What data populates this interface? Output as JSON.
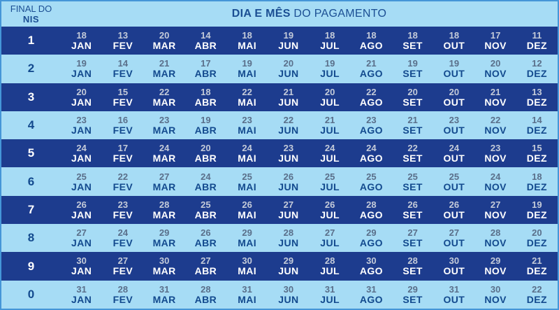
{
  "header": {
    "corner_line1": "FINAL DO",
    "corner_line2": "NIS",
    "title_bold": "DIA E MÊS",
    "title_rest": " DO PAGAMENTO"
  },
  "chart_data": {
    "type": "table",
    "title": "DIA E MÊS DO PAGAMENTO",
    "row_header": "FINAL DO NIS",
    "columns": [
      "JAN",
      "FEV",
      "MAR",
      "ABR",
      "MAI",
      "JUN",
      "JUL",
      "AGO",
      "SET",
      "OUT",
      "NOV",
      "DEZ"
    ],
    "rows": [
      {
        "nis": "1",
        "days": [
          18,
          13,
          20,
          14,
          18,
          19,
          18,
          18,
          18,
          18,
          17,
          11
        ]
      },
      {
        "nis": "2",
        "days": [
          19,
          14,
          21,
          17,
          19,
          20,
          19,
          21,
          19,
          19,
          20,
          12
        ]
      },
      {
        "nis": "3",
        "days": [
          20,
          15,
          22,
          18,
          22,
          21,
          20,
          22,
          20,
          20,
          21,
          13
        ]
      },
      {
        "nis": "4",
        "days": [
          23,
          16,
          23,
          19,
          23,
          22,
          21,
          23,
          21,
          23,
          22,
          14
        ]
      },
      {
        "nis": "5",
        "days": [
          24,
          17,
          24,
          20,
          24,
          23,
          24,
          24,
          22,
          24,
          23,
          15
        ]
      },
      {
        "nis": "6",
        "days": [
          25,
          22,
          27,
          24,
          25,
          26,
          25,
          25,
          25,
          25,
          24,
          18
        ]
      },
      {
        "nis": "7",
        "days": [
          26,
          23,
          28,
          25,
          26,
          27,
          26,
          28,
          26,
          26,
          27,
          19
        ]
      },
      {
        "nis": "8",
        "days": [
          27,
          24,
          29,
          26,
          29,
          28,
          27,
          29,
          27,
          27,
          28,
          20
        ]
      },
      {
        "nis": "9",
        "days": [
          30,
          27,
          30,
          27,
          30,
          29,
          28,
          30,
          28,
          30,
          29,
          21
        ]
      },
      {
        "nis": "0",
        "days": [
          31,
          28,
          31,
          28,
          31,
          30,
          31,
          31,
          29,
          31,
          30,
          22
        ]
      }
    ]
  },
  "colors": {
    "dark_row_bg": "#1d3c8e",
    "light_row_bg": "#a6dcf5",
    "dark_row_day": "#c4cbd9",
    "dark_row_month": "#ffffff",
    "light_row_day": "#5a6f8a",
    "light_row_month": "#134a8e",
    "header_text": "#1b4e93",
    "border": "#4596d8"
  }
}
